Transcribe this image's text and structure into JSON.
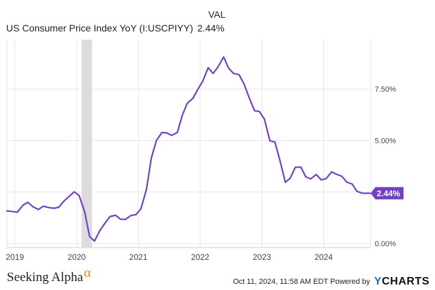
{
  "chart_data": {
    "type": "line",
    "title": "",
    "legend": {
      "header": "VAL",
      "series_name": "US Consumer Price Index YoY (I:USCPIYY)",
      "series_value": "2.44%"
    },
    "x_range": [
      2018.87,
      2024.76
    ],
    "ylim": [
      -0.2,
      9.9
    ],
    "x_ticks": [
      {
        "value": 2019,
        "label": "2019"
      },
      {
        "value": 2020,
        "label": "2020"
      },
      {
        "value": 2021,
        "label": "2021"
      },
      {
        "value": 2022,
        "label": "2022"
      },
      {
        "value": 2023,
        "label": "2023"
      },
      {
        "value": 2024,
        "label": "2024"
      }
    ],
    "y_ticks": [
      {
        "value": 0,
        "label": "0.00%"
      },
      {
        "value": 2.5,
        "label": "2.50%"
      },
      {
        "value": 5,
        "label": "5.00%"
      },
      {
        "value": 7.5,
        "label": "7.50%"
      }
    ],
    "recession_band": {
      "start": 2020.08,
      "end": 2020.25
    },
    "series": [
      {
        "name": "US Consumer Price Index YoY (I:USCPIYY)",
        "color": "#7040c8",
        "last_value_label": "2.44%",
        "x": [
          2018.96,
          2019.04,
          2019.13,
          2019.21,
          2019.29,
          2019.38,
          2019.46,
          2019.54,
          2019.63,
          2019.71,
          2019.79,
          2019.88,
          2019.96,
          2020.04,
          2020.13,
          2020.21,
          2020.29,
          2020.38,
          2020.46,
          2020.54,
          2020.63,
          2020.71,
          2020.79,
          2020.88,
          2020.96,
          2021.04,
          2021.13,
          2021.21,
          2021.29,
          2021.38,
          2021.46,
          2021.54,
          2021.63,
          2021.71,
          2021.79,
          2021.88,
          2021.96,
          2022.04,
          2022.13,
          2022.21,
          2022.29,
          2022.38,
          2022.46,
          2022.54,
          2022.63,
          2022.71,
          2022.79,
          2022.88,
          2022.96,
          2023.04,
          2023.13,
          2023.21,
          2023.29,
          2023.38,
          2023.46,
          2023.54,
          2023.63,
          2023.71,
          2023.79,
          2023.88,
          2023.96,
          2024.04,
          2024.13,
          2024.21,
          2024.29,
          2024.38,
          2024.46,
          2024.54,
          2024.63,
          2024.71
        ],
        "values": [
          1.55,
          1.52,
          1.86,
          2.0,
          1.79,
          1.65,
          1.81,
          1.75,
          1.71,
          1.76,
          2.05,
          2.29,
          2.51,
          2.33,
          1.54,
          0.33,
          0.12,
          0.65,
          0.99,
          1.31,
          1.37,
          1.18,
          1.17,
          1.36,
          1.4,
          1.68,
          2.62,
          4.16,
          4.99,
          5.39,
          5.37,
          5.25,
          5.39,
          6.22,
          6.81,
          7.04,
          7.48,
          7.87,
          8.54,
          8.26,
          8.58,
          9.06,
          8.52,
          8.26,
          8.2,
          7.75,
          7.11,
          6.45,
          6.41,
          6.04,
          4.98,
          4.93,
          4.05,
          2.97,
          3.18,
          3.7,
          3.71,
          3.24,
          3.14,
          3.35,
          3.09,
          3.15,
          3.48,
          3.36,
          3.27,
          2.97,
          2.89,
          2.53,
          2.44,
          2.44
        ]
      }
    ]
  },
  "footer": {
    "brand_text": "Seeking Alpha",
    "brand_symbol": "α",
    "timestamp": "Oct 11, 2024, 11:58 AM EDT",
    "powered_by": "Powered by",
    "logo_y": "Y",
    "logo_rest": "CHARTS"
  }
}
